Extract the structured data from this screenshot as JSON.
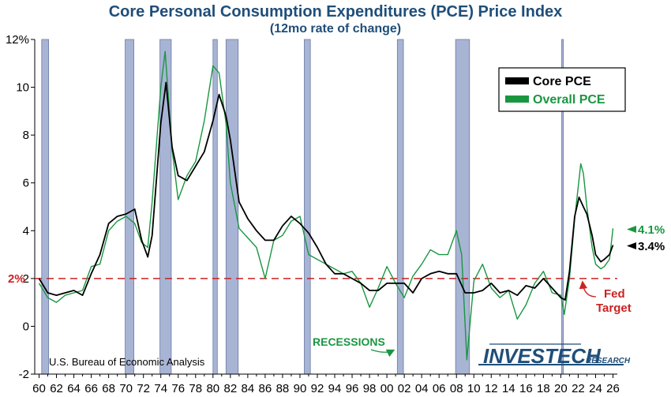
{
  "title": "Core Personal Consumption Expenditures (PCE) Price Index",
  "subtitle": "(12mo rate of change)",
  "source": "U.S. Bureau of Economic Analysis",
  "brand": {
    "main": "INVESTECH",
    "sub": "RESEARCH"
  },
  "annotations": {
    "recessions": "RECESSIONS",
    "fed_target_1": "Fed",
    "fed_target_2": "Target",
    "target_label": "2%",
    "core_last": "3.4%",
    "overall_last": "4.1%"
  },
  "colors": {
    "core": "#000000",
    "overall": "#1a9641",
    "recession": "#a8b4d4",
    "target": "#cc2222",
    "title": "#1f4e79"
  },
  "chart_data": {
    "type": "line",
    "xlabel": "",
    "ylabel": "",
    "xlim": [
      1959.5,
      2026.5
    ],
    "ylim": [
      -2,
      12
    ],
    "x_ticks": [
      "60",
      "62",
      "64",
      "66",
      "68",
      "70",
      "72",
      "74",
      "76",
      "78",
      "80",
      "82",
      "84",
      "86",
      "88",
      "90",
      "92",
      "94",
      "96",
      "98",
      "00",
      "02",
      "04",
      "06",
      "08",
      "10",
      "12",
      "14",
      "16",
      "18",
      "20",
      "22",
      "24",
      "26"
    ],
    "y_ticks": [
      "-2",
      "0",
      "2",
      "4",
      "6",
      "8",
      "10",
      "12%"
    ],
    "target_level": 2,
    "recessions": [
      [
        1960.3,
        1961.1
      ],
      [
        1969.9,
        1970.9
      ],
      [
        1973.9,
        1975.2
      ],
      [
        1980.0,
        1980.5
      ],
      [
        1981.5,
        1982.9
      ],
      [
        1990.5,
        1991.2
      ],
      [
        2001.2,
        2001.9
      ],
      [
        2007.9,
        2009.5
      ],
      [
        2020.1,
        2020.3
      ]
    ],
    "legend": {
      "position": "top-right"
    },
    "series": [
      {
        "name": "Core PCE",
        "points": [
          [
            1960,
            2.0
          ],
          [
            1961,
            1.4
          ],
          [
            1962,
            1.3
          ],
          [
            1963,
            1.4
          ],
          [
            1964,
            1.5
          ],
          [
            1965,
            1.3
          ],
          [
            1966,
            2.2
          ],
          [
            1967,
            3.0
          ],
          [
            1968,
            4.3
          ],
          [
            1969,
            4.6
          ],
          [
            1970,
            4.7
          ],
          [
            1971,
            4.9
          ],
          [
            1971.8,
            3.6
          ],
          [
            1972.5,
            2.9
          ],
          [
            1973,
            3.8
          ],
          [
            1974,
            8.5
          ],
          [
            1974.6,
            10.2
          ],
          [
            1975.3,
            7.5
          ],
          [
            1976,
            6.3
          ],
          [
            1977,
            6.1
          ],
          [
            1978,
            6.7
          ],
          [
            1979,
            7.3
          ],
          [
            1980,
            8.6
          ],
          [
            1980.7,
            9.7
          ],
          [
            1981.5,
            8.8
          ],
          [
            1982,
            7.8
          ],
          [
            1983,
            5.2
          ],
          [
            1984,
            4.5
          ],
          [
            1985,
            4.0
          ],
          [
            1986,
            3.6
          ],
          [
            1987,
            3.6
          ],
          [
            1988,
            4.2
          ],
          [
            1989,
            4.6
          ],
          [
            1990,
            4.3
          ],
          [
            1991,
            3.9
          ],
          [
            1992,
            3.3
          ],
          [
            1993,
            2.6
          ],
          [
            1994,
            2.2
          ],
          [
            1995,
            2.2
          ],
          [
            1996,
            2.0
          ],
          [
            1997,
            1.8
          ],
          [
            1998,
            1.5
          ],
          [
            1999,
            1.5
          ],
          [
            2000,
            1.8
          ],
          [
            2001,
            1.8
          ],
          [
            2002,
            1.8
          ],
          [
            2003,
            1.4
          ],
          [
            2004,
            2.0
          ],
          [
            2005,
            2.2
          ],
          [
            2006,
            2.3
          ],
          [
            2007,
            2.2
          ],
          [
            2008,
            2.2
          ],
          [
            2009,
            1.4
          ],
          [
            2010,
            1.4
          ],
          [
            2011,
            1.5
          ],
          [
            2012,
            1.8
          ],
          [
            2013,
            1.4
          ],
          [
            2014,
            1.5
          ],
          [
            2015,
            1.3
          ],
          [
            2016,
            1.7
          ],
          [
            2017,
            1.6
          ],
          [
            2018,
            2.0
          ],
          [
            2019,
            1.6
          ],
          [
            2020,
            1.2
          ],
          [
            2020.5,
            1.1
          ],
          [
            2021,
            2.3
          ],
          [
            2021.6,
            4.6
          ],
          [
            2022.1,
            5.4
          ],
          [
            2022.6,
            5.0
          ],
          [
            2023,
            4.7
          ],
          [
            2023.6,
            3.8
          ],
          [
            2024,
            3.0
          ],
          [
            2024.6,
            2.7
          ],
          [
            2025,
            2.8
          ],
          [
            2025.6,
            3.0
          ],
          [
            2026,
            3.4
          ]
        ]
      },
      {
        "name": "Overall PCE",
        "points": [
          [
            1960,
            1.8
          ],
          [
            1961,
            1.2
          ],
          [
            1962,
            1.0
          ],
          [
            1963,
            1.3
          ],
          [
            1964,
            1.4
          ],
          [
            1965,
            1.5
          ],
          [
            1966,
            2.5
          ],
          [
            1967,
            2.6
          ],
          [
            1968,
            4.0
          ],
          [
            1969,
            4.4
          ],
          [
            1970,
            4.6
          ],
          [
            1971,
            4.3
          ],
          [
            1971.8,
            3.5
          ],
          [
            1972.5,
            3.3
          ],
          [
            1973,
            5.2
          ],
          [
            1974,
            10.0
          ],
          [
            1974.5,
            11.5
          ],
          [
            1975.3,
            7.4
          ],
          [
            1976,
            5.3
          ],
          [
            1977,
            6.3
          ],
          [
            1978,
            6.9
          ],
          [
            1979,
            8.6
          ],
          [
            1980,
            10.9
          ],
          [
            1980.7,
            10.6
          ],
          [
            1981.5,
            8.5
          ],
          [
            1982,
            6.0
          ],
          [
            1983,
            4.1
          ],
          [
            1984,
            3.7
          ],
          [
            1985,
            3.3
          ],
          [
            1986,
            2.0
          ],
          [
            1987,
            3.6
          ],
          [
            1988,
            3.8
          ],
          [
            1989,
            4.4
          ],
          [
            1990,
            4.6
          ],
          [
            1991,
            3.0
          ],
          [
            1992,
            2.8
          ],
          [
            1993,
            2.6
          ],
          [
            1994,
            2.4
          ],
          [
            1995,
            2.2
          ],
          [
            1996,
            2.3
          ],
          [
            1997,
            1.8
          ],
          [
            1998,
            0.8
          ],
          [
            1999,
            1.6
          ],
          [
            2000,
            2.5
          ],
          [
            2001,
            1.8
          ],
          [
            2002,
            1.2
          ],
          [
            2003,
            2.1
          ],
          [
            2004,
            2.6
          ],
          [
            2005,
            3.2
          ],
          [
            2006,
            3.0
          ],
          [
            2007,
            3.0
          ],
          [
            2008,
            4.0
          ],
          [
            2008.6,
            3.0
          ],
          [
            2009.2,
            -1.4
          ],
          [
            2010,
            1.9
          ],
          [
            2011,
            2.6
          ],
          [
            2012,
            1.6
          ],
          [
            2013,
            1.2
          ],
          [
            2014,
            1.5
          ],
          [
            2015,
            0.3
          ],
          [
            2016,
            0.9
          ],
          [
            2017,
            1.8
          ],
          [
            2018,
            2.3
          ],
          [
            2019,
            1.4
          ],
          [
            2020,
            1.3
          ],
          [
            2020.4,
            0.5
          ],
          [
            2021,
            2.0
          ],
          [
            2021.6,
            4.5
          ],
          [
            2022.3,
            6.8
          ],
          [
            2022.6,
            6.4
          ],
          [
            2023,
            5.0
          ],
          [
            2023.6,
            3.3
          ],
          [
            2024,
            2.6
          ],
          [
            2024.6,
            2.4
          ],
          [
            2025,
            2.5
          ],
          [
            2025.6,
            2.8
          ],
          [
            2026,
            4.1
          ]
        ]
      }
    ]
  }
}
